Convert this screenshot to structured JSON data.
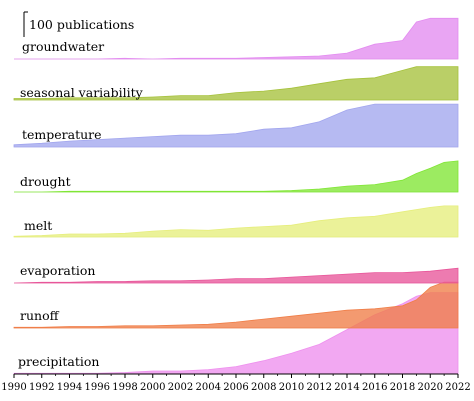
{
  "chart_data": {
    "type": "area",
    "scale_bar_label": "100 publications",
    "scale_bar_value": 100,
    "x_ticks": [
      "1990",
      "1992",
      "1994",
      "1996",
      "1998",
      "2000",
      "2002",
      "2004",
      "2006",
      "2008",
      "2010",
      "2012",
      "2014",
      "2016",
      "2018",
      "2020",
      "2022"
    ],
    "xlim": [
      1990,
      2022
    ],
    "series": [
      {
        "name": "groundwater",
        "color": "#e38cf0",
        "x": [
          1990,
          1992,
          1994,
          1996,
          1998,
          2000,
          2002,
          2004,
          2006,
          2008,
          2010,
          2012,
          2014,
          2016,
          2018,
          2019,
          2020,
          2021,
          2022
        ],
        "values": [
          0,
          0,
          0,
          0,
          1,
          0,
          1,
          1,
          1,
          2,
          3,
          4,
          8,
          20,
          25,
          50,
          55,
          55,
          55
        ]
      },
      {
        "name": "seasonal variability",
        "color": "#a6c23c",
        "x": [
          1990,
          1992,
          1994,
          1996,
          1998,
          2000,
          2002,
          2004,
          2006,
          2008,
          2010,
          2012,
          2014,
          2016,
          2018,
          2019,
          2020,
          2021,
          2022
        ],
        "values": [
          2,
          2,
          3,
          3,
          3,
          4,
          6,
          6,
          10,
          12,
          16,
          22,
          28,
          30,
          40,
          45,
          45,
          45,
          45
        ]
      },
      {
        "name": "temperature",
        "color": "#a2a6ee",
        "x": [
          1990,
          1992,
          1994,
          1996,
          1998,
          2000,
          2002,
          2004,
          2006,
          2008,
          2010,
          2012,
          2014,
          2016,
          2018,
          2020,
          2021,
          2022
        ],
        "values": [
          3,
          5,
          8,
          10,
          12,
          14,
          16,
          16,
          18,
          24,
          26,
          34,
          50,
          58,
          58,
          58,
          58,
          58
        ]
      },
      {
        "name": "drought",
        "color": "#80e634",
        "x": [
          1990,
          1992,
          1994,
          1996,
          1998,
          2000,
          2002,
          2004,
          2006,
          2008,
          2010,
          2012,
          2014,
          2016,
          2018,
          2019,
          2020,
          2021,
          2022
        ],
        "values": [
          0,
          0,
          1,
          1,
          1,
          1,
          1,
          1,
          1,
          1,
          2,
          4,
          8,
          10,
          16,
          25,
          32,
          40,
          42
        ]
      },
      {
        "name": "melt",
        "color": "#e6ee7c",
        "x": [
          1990,
          1992,
          1994,
          1996,
          1998,
          2000,
          2002,
          2004,
          2006,
          2008,
          2010,
          2012,
          2014,
          2016,
          2018,
          2020,
          2021,
          2022
        ],
        "values": [
          1,
          2,
          4,
          4,
          5,
          8,
          10,
          9,
          12,
          14,
          16,
          22,
          26,
          28,
          34,
          40,
          42,
          42
        ]
      },
      {
        "name": "evaporation",
        "color": "#e8569a",
        "x": [
          1990,
          1992,
          1994,
          1996,
          1998,
          2000,
          2002,
          2004,
          2006,
          2008,
          2010,
          2012,
          2014,
          2016,
          2018,
          2020,
          2021,
          2022
        ],
        "values": [
          0,
          1,
          1,
          2,
          2,
          3,
          3,
          4,
          6,
          6,
          8,
          10,
          12,
          14,
          14,
          16,
          18,
          20
        ]
      },
      {
        "name": "runoff",
        "color": "#f07e48",
        "x": [
          1990,
          1992,
          1994,
          1996,
          1998,
          2000,
          2002,
          2004,
          2006,
          2008,
          2010,
          2012,
          2014,
          2016,
          2018,
          2019,
          2020,
          2021,
          2022
        ],
        "values": [
          1,
          1,
          2,
          2,
          3,
          3,
          4,
          5,
          8,
          12,
          16,
          20,
          24,
          26,
          30,
          38,
          55,
          62,
          62
        ]
      },
      {
        "name": "precipitation",
        "color": "#ee90ee",
        "x": [
          1990,
          1992,
          1994,
          1996,
          1998,
          2000,
          2002,
          2004,
          2006,
          2008,
          2010,
          2012,
          2014,
          2016,
          2018,
          2019,
          2020,
          2021,
          2022
        ],
        "values": [
          1,
          1,
          1,
          1,
          2,
          4,
          4,
          6,
          10,
          18,
          28,
          40,
          60,
          80,
          95,
          105,
          110,
          110,
          110
        ]
      }
    ]
  }
}
